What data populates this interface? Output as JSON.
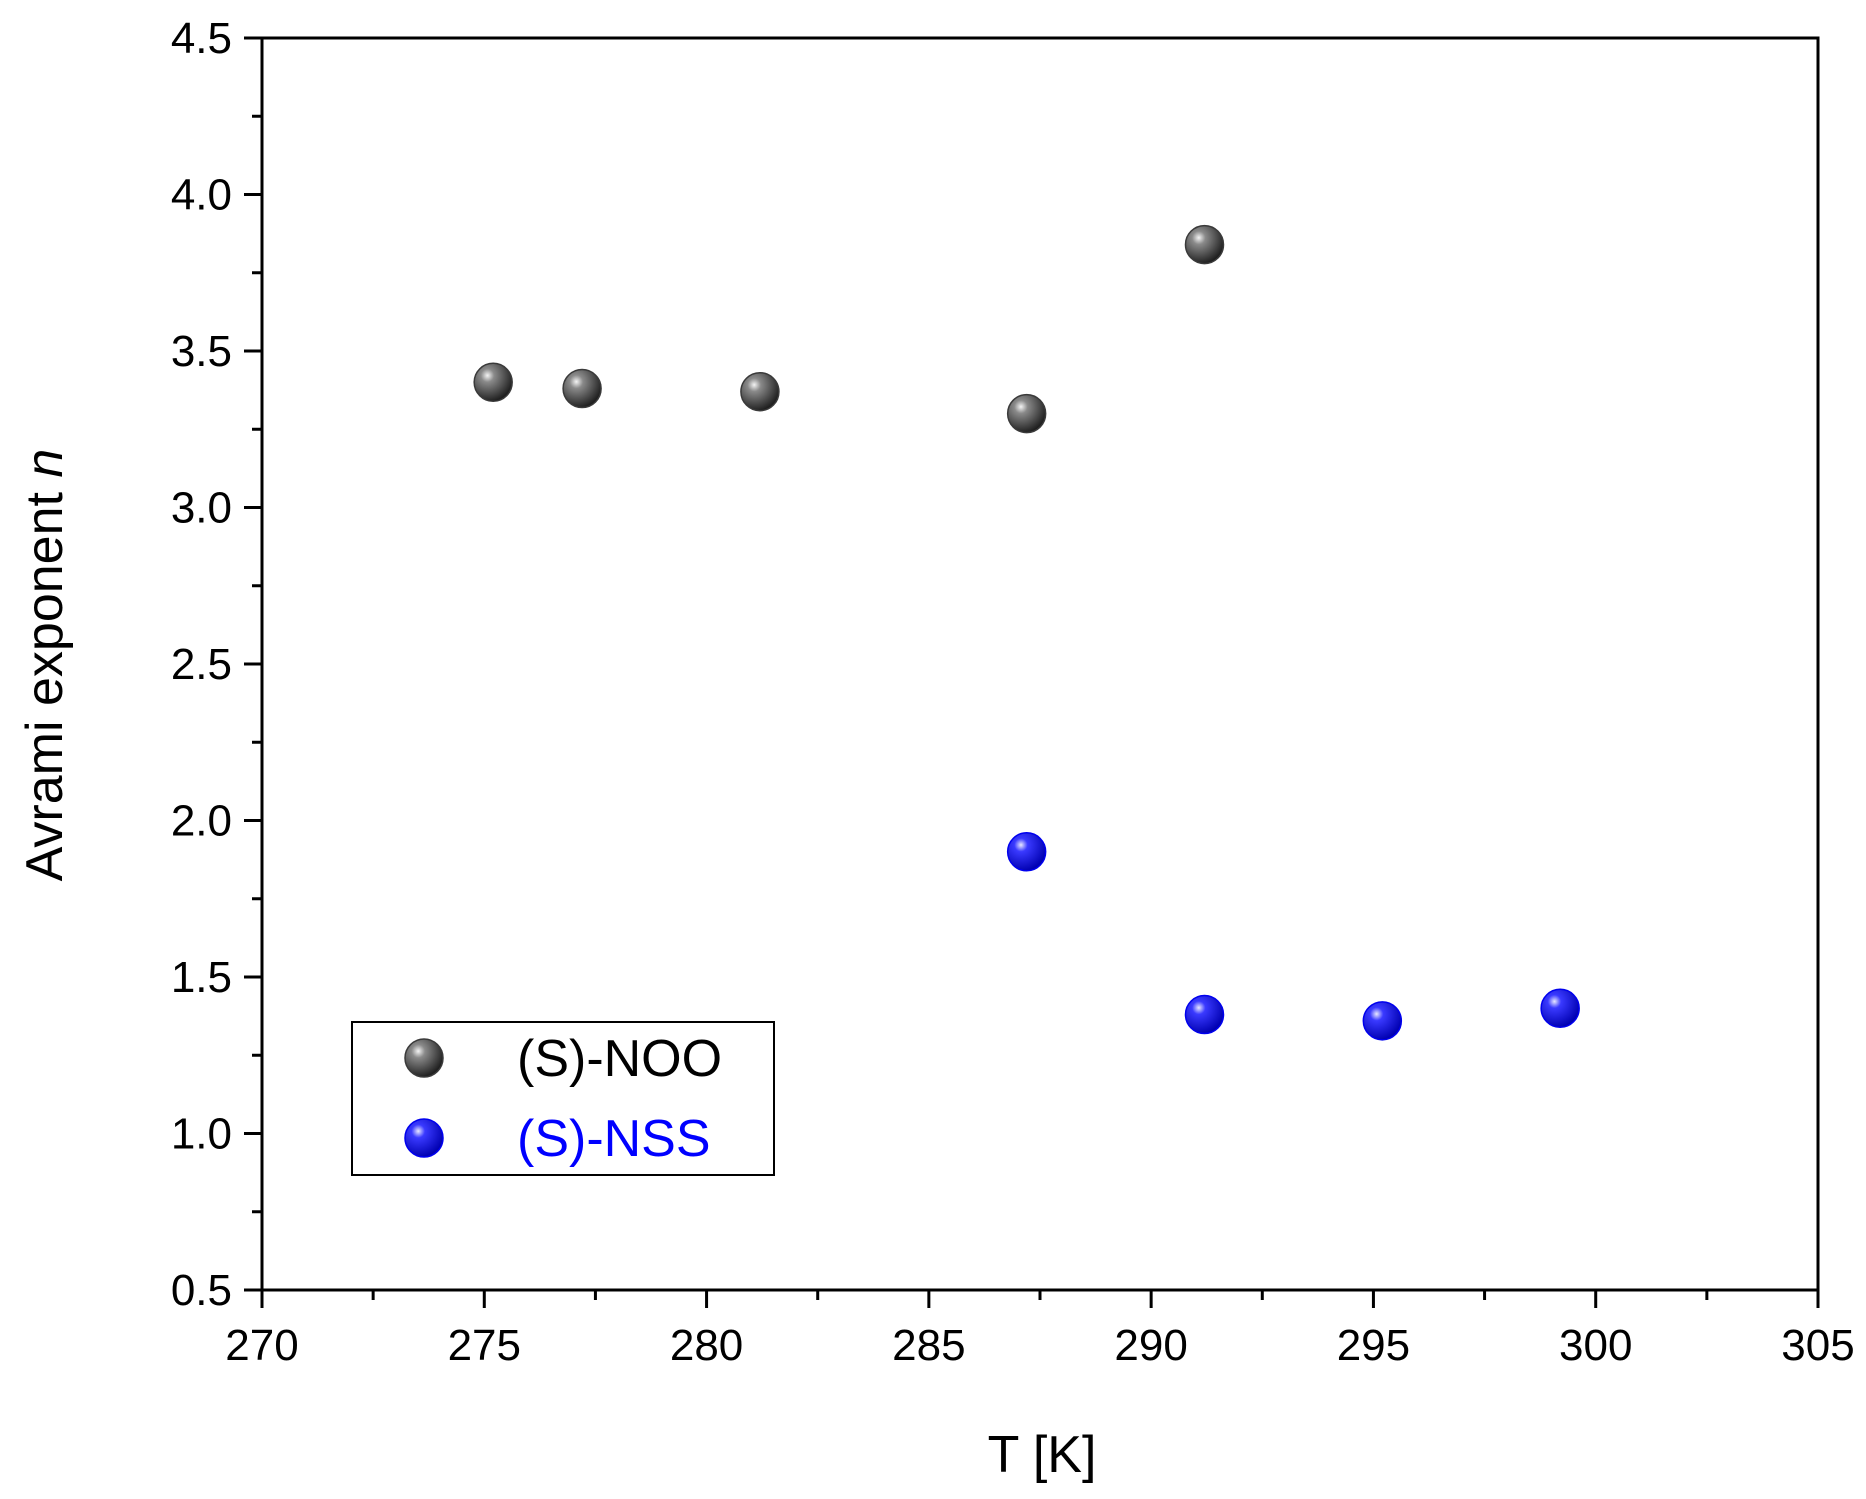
{
  "chart_data": {
    "type": "scatter",
    "xlabel": "T [K]",
    "ylabel_prefix": "Avrami exponent ",
    "ylabel_var": "n",
    "xlim": [
      270,
      305
    ],
    "ylim": [
      0.5,
      4.5
    ],
    "x_ticks": [
      270,
      275,
      280,
      285,
      290,
      295,
      300,
      305
    ],
    "y_ticks": [
      0.5,
      1.0,
      1.5,
      2.0,
      2.5,
      3.0,
      3.5,
      4.0,
      4.5
    ],
    "x_tick_labels": [
      "270",
      "275",
      "280",
      "285",
      "290",
      "295",
      "300",
      "305"
    ],
    "y_tick_labels": [
      "0.5",
      "1.0",
      "1.5",
      "2.0",
      "2.5",
      "3.0",
      "3.5",
      "4.0",
      "4.5"
    ],
    "grid": false,
    "legend_position": "bottom-left",
    "series": [
      {
        "name": "(S)-NOO",
        "color": "#3a3a3a",
        "label_color": "#000000",
        "points": [
          {
            "x": 275.2,
            "y": 3.4
          },
          {
            "x": 277.2,
            "y": 3.38
          },
          {
            "x": 281.2,
            "y": 3.37
          },
          {
            "x": 287.2,
            "y": 3.3
          },
          {
            "x": 291.2,
            "y": 3.84
          }
        ]
      },
      {
        "name": "(S)-NSS",
        "color": "#0000ee",
        "label_color": "#0000ff",
        "points": [
          {
            "x": 287.2,
            "y": 1.9
          },
          {
            "x": 291.2,
            "y": 1.38
          },
          {
            "x": 295.2,
            "y": 1.36
          },
          {
            "x": 299.2,
            "y": 1.4
          }
        ]
      }
    ]
  }
}
